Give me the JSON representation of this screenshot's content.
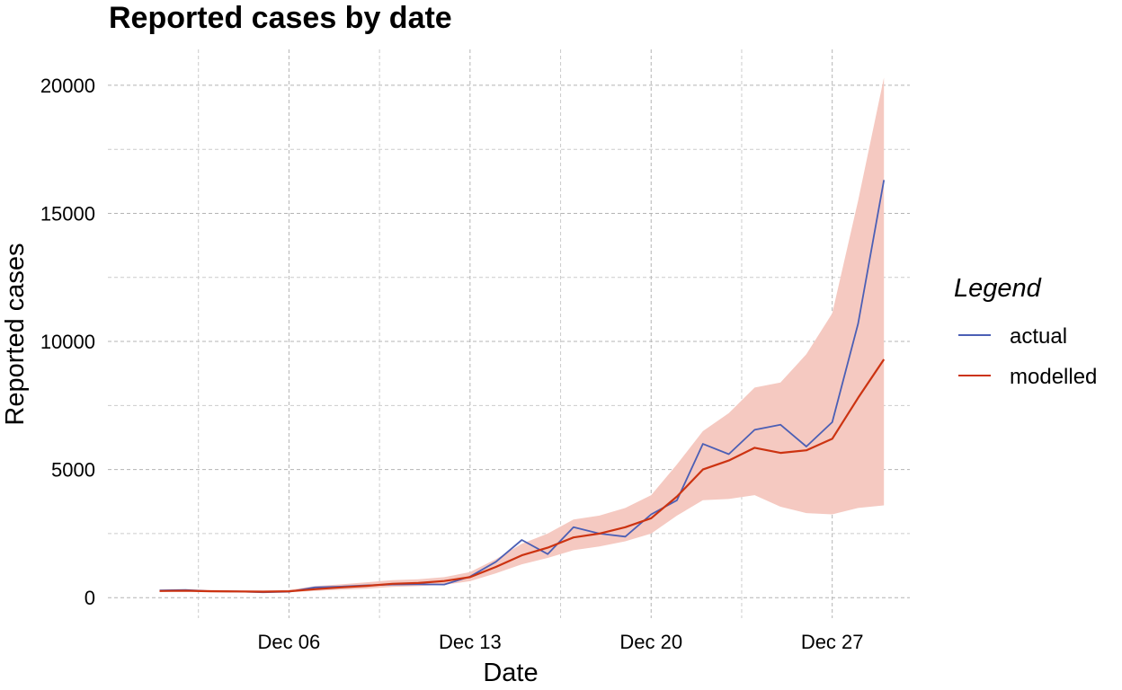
{
  "chart_data": {
    "type": "line",
    "title": "Reported cases by date",
    "xlabel": "Date",
    "ylabel": "Reported cases",
    "x_ticks": [
      "Dec 06",
      "Dec 13",
      "Dec 20",
      "Dec 27"
    ],
    "x_tick_dates": [
      "2020-12-06",
      "2020-12-13",
      "2020-12-20",
      "2020-12-27"
    ],
    "y_ticks": [
      0,
      5000,
      10000,
      15000,
      20000
    ],
    "y_tick_labels": [
      "0",
      "5000",
      "10000",
      "15000",
      "20000"
    ],
    "xlim": [
      "2020-11-29",
      "2020-12-30"
    ],
    "ylim": [
      -800,
      21400
    ],
    "grid": true,
    "legend": {
      "title": "Legend",
      "position": "right",
      "entries": [
        {
          "label": "actual",
          "color": "#4b5fb5"
        },
        {
          "label": "modelled",
          "color": "#cc3311"
        }
      ]
    },
    "x": [
      "2020-12-01",
      "2020-12-02",
      "2020-12-03",
      "2020-12-04",
      "2020-12-05",
      "2020-12-06",
      "2020-12-07",
      "2020-12-08",
      "2020-12-09",
      "2020-12-10",
      "2020-12-11",
      "2020-12-12",
      "2020-12-13",
      "2020-12-14",
      "2020-12-15",
      "2020-12-16",
      "2020-12-17",
      "2020-12-18",
      "2020-12-19",
      "2020-12-20",
      "2020-12-21",
      "2020-12-22",
      "2020-12-23",
      "2020-12-24",
      "2020-12-25",
      "2020-12-26",
      "2020-12-27",
      "2020-12-28",
      "2020-12-29"
    ],
    "series": [
      {
        "name": "actual",
        "color": "#4b5fb5",
        "values": [
          280,
          300,
          250,
          240,
          210,
          230,
          400,
          430,
          480,
          510,
          520,
          510,
          820,
          1400,
          2250,
          1700,
          2750,
          2500,
          2380,
          3250,
          3800,
          6000,
          5600,
          6550,
          6750,
          5900,
          6850,
          10700,
          16300
        ]
      },
      {
        "name": "modelled",
        "color": "#cc3311",
        "values": [
          260,
          270,
          250,
          240,
          230,
          250,
          330,
          400,
          460,
          540,
          570,
          650,
          800,
          1200,
          1650,
          1950,
          2350,
          2500,
          2750,
          3100,
          3950,
          5000,
          5350,
          5850,
          5650,
          5750,
          6200,
          7800,
          9300
        ]
      }
    ],
    "band": {
      "name": "modelled interval",
      "color": "#f5c9c1",
      "upper": [
        300,
        320,
        300,
        290,
        290,
        300,
        450,
        520,
        600,
        680,
        720,
        800,
        1000,
        1500,
        2100,
        2500,
        3050,
        3200,
        3500,
        4000,
        5200,
        6500,
        7200,
        8200,
        8400,
        9500,
        11100,
        15500,
        20300
      ],
      "lower": [
        230,
        240,
        220,
        210,
        200,
        210,
        260,
        310,
        350,
        420,
        450,
        500,
        640,
        950,
        1300,
        1550,
        1850,
        2000,
        2200,
        2500,
        3200,
        3800,
        3850,
        4000,
        3550,
        3300,
        3250,
        3500,
        3600
      ]
    }
  }
}
